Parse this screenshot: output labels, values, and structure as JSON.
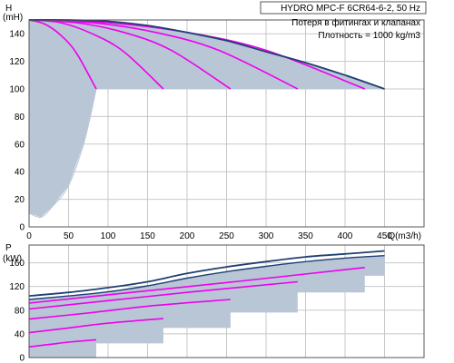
{
  "chart_data": {
    "type": "line",
    "title": "HYDRO MPC-F 6CR64-6-2, 50 Hz",
    "notes": [
      "Потеря в фитингах и клапанах",
      "Плотность = 1000 kg/m3"
    ],
    "colors": {
      "envelope": "#1f3f73",
      "speed_curves": "#ee00ee",
      "fill": "#b8c6d6",
      "grid": "#c8c8c8"
    },
    "x": {
      "label": "Q(m3/h)",
      "range": [
        0,
        500
      ],
      "ticks": [
        0,
        50,
        100,
        150,
        200,
        250,
        300,
        350,
        400,
        450
      ]
    },
    "head_plot": {
      "ylabel": "H",
      "yunit": "(mH)",
      "ylim": [
        0,
        150
      ],
      "yticks": [
        0,
        20,
        40,
        60,
        80,
        100,
        120,
        140
      ],
      "envelope": {
        "x": [
          0,
          50,
          100,
          150,
          200,
          250,
          300,
          350,
          400,
          450
        ],
        "y": [
          150,
          150,
          149,
          146,
          141,
          135,
          127,
          119,
          110,
          100
        ]
      },
      "speed_curves": [
        {
          "x": [
            0,
            20,
            40,
            60,
            85
          ],
          "y": [
            150,
            147,
            139,
            126,
            100
          ]
        },
        {
          "x": [
            0,
            40,
            80,
            120,
            170
          ],
          "y": [
            150,
            148,
            140,
            127,
            100
          ]
        },
        {
          "x": [
            0,
            60,
            120,
            180,
            255
          ],
          "y": [
            150,
            148,
            141,
            128,
            100
          ]
        },
        {
          "x": [
            0,
            80,
            160,
            240,
            340
          ],
          "y": [
            150,
            148,
            141,
            128,
            100
          ]
        },
        {
          "x": [
            0,
            100,
            200,
            300,
            425
          ],
          "y": [
            150,
            148,
            141,
            128,
            100
          ]
        }
      ],
      "minimum_head_curve": {
        "x": [
          0,
          15,
          30,
          50,
          70,
          85
        ],
        "y": [
          10,
          7,
          15,
          30,
          62,
          100
        ]
      }
    },
    "power_plot": {
      "ylabel": "P",
      "yunit": "(kW)",
      "ylim": [
        0,
        190
      ],
      "yticks": [
        0,
        40,
        80,
        120,
        160
      ],
      "envelope": {
        "x": [
          0,
          50,
          100,
          150,
          200,
          250,
          300,
          350,
          400,
          450
        ],
        "y": [
          104,
          110,
          118,
          128,
          142,
          153,
          162,
          170,
          175,
          180
        ]
      },
      "envelope_lower": {
        "x": [
          0,
          50,
          100,
          150,
          200,
          250,
          300,
          350,
          400,
          450
        ],
        "y": [
          98,
          104,
          111,
          121,
          134,
          145,
          154,
          162,
          168,
          172
        ]
      },
      "speed_curves": [
        {
          "x": [
            0,
            25,
            50,
            85
          ],
          "y": [
            18,
            22,
            26,
            30
          ]
        },
        {
          "x": [
            0,
            50,
            100,
            170
          ],
          "y": [
            42,
            50,
            58,
            66
          ]
        },
        {
          "x": [
            0,
            80,
            160,
            255
          ],
          "y": [
            65,
            76,
            88,
            98
          ]
        },
        {
          "x": [
            0,
            100,
            200,
            340
          ],
          "y": [
            82,
            96,
            110,
            128
          ]
        },
        {
          "x": [
            0,
            130,
            260,
            425
          ],
          "y": [
            92,
            110,
            128,
            152
          ]
        }
      ],
      "shaded_steps": {
        "x": [
          85,
          170,
          255,
          340,
          425
        ],
        "y": [
          24,
          50,
          76,
          110,
          138
        ]
      }
    }
  }
}
